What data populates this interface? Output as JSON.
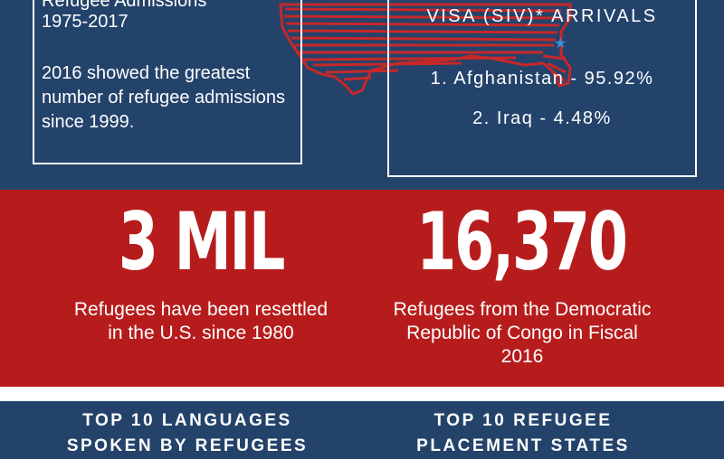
{
  "top_left": {
    "title_line1": "Refugee Admissions",
    "title_line2": "1975-2017",
    "note": "2016 showed the greatest number of refugee admissions since 1999."
  },
  "top_right": {
    "header": "VISA (SIV)* ARRIVALS",
    "items": [
      "1. Afghanistan - 95.92%",
      "2. Iraq - 4.48%"
    ]
  },
  "stats": [
    {
      "value": "3 MIL",
      "caption": "Refugees have been resettled in the U.S. since 1980"
    },
    {
      "value": "16,370",
      "caption": "Refugees from the Democratic Republic of Congo in Fiscal 2016"
    }
  ],
  "bottom": {
    "left_heading": "TOP 10 LANGUAGES SPOKEN BY REFUGEES",
    "right_heading": "TOP 10 REFUGEE PLACEMENT STATES"
  },
  "icons": {
    "map": "usa-map-icon",
    "star": "star-icon"
  },
  "colors": {
    "navy": "#24436b",
    "red": "#b71c1c",
    "white": "#ffffff",
    "star": "#3d8de0"
  }
}
